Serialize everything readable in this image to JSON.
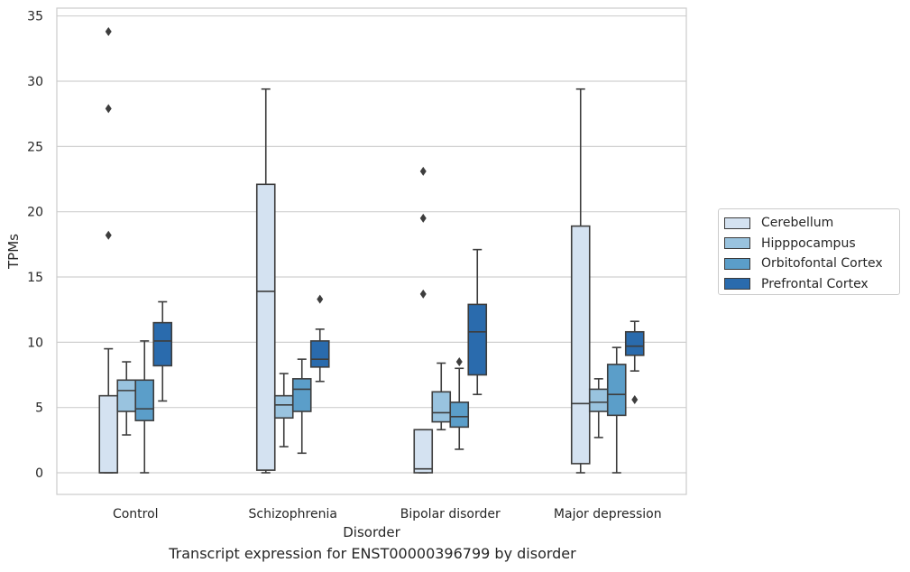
{
  "chart_data": {
    "type": "box",
    "xlabel": "Disorder",
    "ylabel": "TPMs",
    "caption": "Transcript expression for ENST00000396799 by disorder",
    "categories": [
      "Control",
      "Schizophrenia",
      "Bipolar disorder",
      "Major depression"
    ],
    "yticks": [
      0,
      5,
      10,
      15,
      20,
      25,
      30,
      35
    ],
    "ylim": [
      -1.6,
      35.6
    ],
    "grid": "horizontal",
    "legend_position": "right",
    "series": [
      {
        "name": "Cerebellum",
        "color": "#d4e2f1",
        "boxes": [
          {
            "whislo": 0,
            "q1": 0,
            "med": 0,
            "q3": 5.9,
            "whishi": 9.5,
            "fliers": [
              18.2,
              27.9,
              33.8
            ]
          },
          {
            "whislo": 0,
            "q1": 0.2,
            "med": 13.9,
            "q3": 22.1,
            "whishi": 29.4,
            "fliers": []
          },
          {
            "whislo": 0,
            "q1": 0,
            "med": 0.3,
            "q3": 3.3,
            "whishi": 3.3,
            "fliers": [
              13.7,
              19.5,
              23.1
            ]
          },
          {
            "whislo": 0,
            "q1": 0.7,
            "med": 5.3,
            "q3": 18.9,
            "whishi": 29.4,
            "fliers": []
          }
        ]
      },
      {
        "name": "Hipppocampus",
        "color": "#99c3df",
        "boxes": [
          {
            "whislo": 2.9,
            "q1": 4.7,
            "med": 6.3,
            "q3": 7.1,
            "whishi": 8.5,
            "fliers": []
          },
          {
            "whislo": 2.0,
            "q1": 4.2,
            "med": 5.2,
            "q3": 5.9,
            "whishi": 7.6,
            "fliers": []
          },
          {
            "whislo": 3.3,
            "q1": 3.9,
            "med": 4.6,
            "q3": 6.2,
            "whishi": 8.4,
            "fliers": []
          },
          {
            "whislo": 2.7,
            "q1": 4.7,
            "med": 5.4,
            "q3": 6.4,
            "whishi": 7.2,
            "fliers": []
          }
        ]
      },
      {
        "name": "Orbitofontal Cortex",
        "color": "#5b9ec9",
        "boxes": [
          {
            "whislo": 0,
            "q1": 4.0,
            "med": 4.9,
            "q3": 7.1,
            "whishi": 10.1,
            "fliers": []
          },
          {
            "whislo": 1.5,
            "q1": 4.7,
            "med": 6.4,
            "q3": 7.2,
            "whishi": 8.7,
            "fliers": []
          },
          {
            "whislo": 1.8,
            "q1": 3.5,
            "med": 4.3,
            "q3": 5.4,
            "whishi": 8.0,
            "fliers": [
              8.5
            ]
          },
          {
            "whislo": 0,
            "q1": 4.4,
            "med": 6.0,
            "q3": 8.3,
            "whishi": 9.6,
            "fliers": []
          }
        ]
      },
      {
        "name": "Prefrontal Cortex",
        "color": "#2a6bad",
        "boxes": [
          {
            "whislo": 5.5,
            "q1": 8.2,
            "med": 10.1,
            "q3": 11.5,
            "whishi": 13.1,
            "fliers": []
          },
          {
            "whislo": 7.0,
            "q1": 8.1,
            "med": 8.7,
            "q3": 10.1,
            "whishi": 11.0,
            "fliers": [
              13.3
            ]
          },
          {
            "whislo": 6.0,
            "q1": 7.5,
            "med": 10.8,
            "q3": 12.9,
            "whishi": 17.1,
            "fliers": []
          },
          {
            "whislo": 7.8,
            "q1": 9.0,
            "med": 9.7,
            "q3": 10.8,
            "whishi": 11.6,
            "fliers": [
              5.6
            ]
          }
        ]
      }
    ]
  }
}
